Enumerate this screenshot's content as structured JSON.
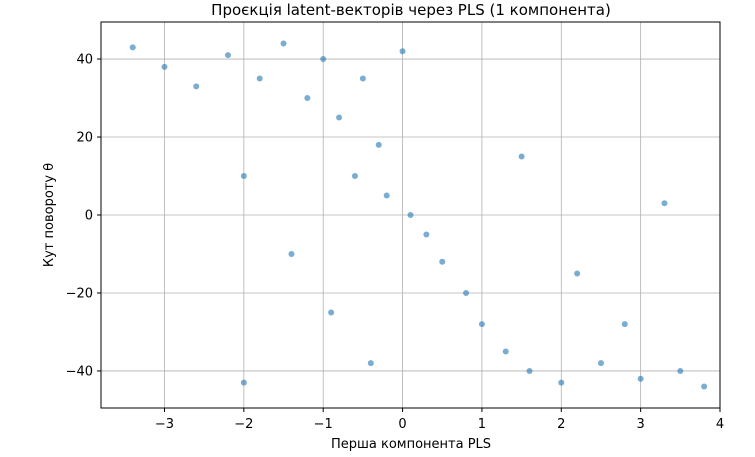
{
  "chart_data": {
    "type": "scatter",
    "title": "Проєкція latent-векторів через PLS (1 компонента)",
    "xlabel": "Перша компонента PLS",
    "ylabel": "Кут повороту θ",
    "xlim": [
      -3.8,
      4.0
    ],
    "ylim": [
      -49.5,
      49.5
    ],
    "xticks": [
      -3,
      -2,
      -1,
      0,
      1,
      2,
      3,
      4
    ],
    "yticks": [
      -40,
      -20,
      0,
      20,
      40
    ],
    "xtick_labels": [
      "−3",
      "−2",
      "−1",
      "0",
      "1",
      "2",
      "3",
      "4"
    ],
    "ytick_labels": [
      "−40",
      "−20",
      "0",
      "20",
      "40"
    ],
    "grid": true,
    "color": "#1f77b4",
    "point_alpha": 0.6,
    "series": [
      {
        "values": [
          {
            "x": -3.4,
            "y": 43
          },
          {
            "x": -3.0,
            "y": 38
          },
          {
            "x": -2.6,
            "y": 33
          },
          {
            "x": -2.2,
            "y": 41
          },
          {
            "x": -1.8,
            "y": 35
          },
          {
            "x": -1.5,
            "y": 44
          },
          {
            "x": -1.2,
            "y": 30
          },
          {
            "x": -1.0,
            "y": 40
          },
          {
            "x": -0.8,
            "y": 25
          },
          {
            "x": -0.5,
            "y": 35
          },
          {
            "x": -0.3,
            "y": 18
          },
          {
            "x": 0.0,
            "y": 42
          },
          {
            "x": -0.6,
            "y": 10
          },
          {
            "x": -0.2,
            "y": 5
          },
          {
            "x": 0.1,
            "y": 0
          },
          {
            "x": 0.3,
            "y": -5
          },
          {
            "x": 0.5,
            "y": -12
          },
          {
            "x": 0.8,
            "y": -20
          },
          {
            "x": 1.0,
            "y": -28
          },
          {
            "x": 1.3,
            "y": -35
          },
          {
            "x": 1.6,
            "y": -40
          },
          {
            "x": 2.0,
            "y": -43
          },
          {
            "x": 2.5,
            "y": -38
          },
          {
            "x": 3.0,
            "y": -42
          },
          {
            "x": 3.5,
            "y": -40
          },
          {
            "x": 3.8,
            "y": -44
          },
          {
            "x": 2.8,
            "y": -28
          },
          {
            "x": 2.2,
            "y": -15
          },
          {
            "x": 1.5,
            "y": 15
          },
          {
            "x": 3.3,
            "y": 3
          },
          {
            "x": -2.0,
            "y": 10
          },
          {
            "x": -1.4,
            "y": -10
          },
          {
            "x": -0.9,
            "y": -25
          },
          {
            "x": -0.4,
            "y": -38
          },
          {
            "x": -2.0,
            "y": -43
          }
        ]
      }
    ]
  }
}
